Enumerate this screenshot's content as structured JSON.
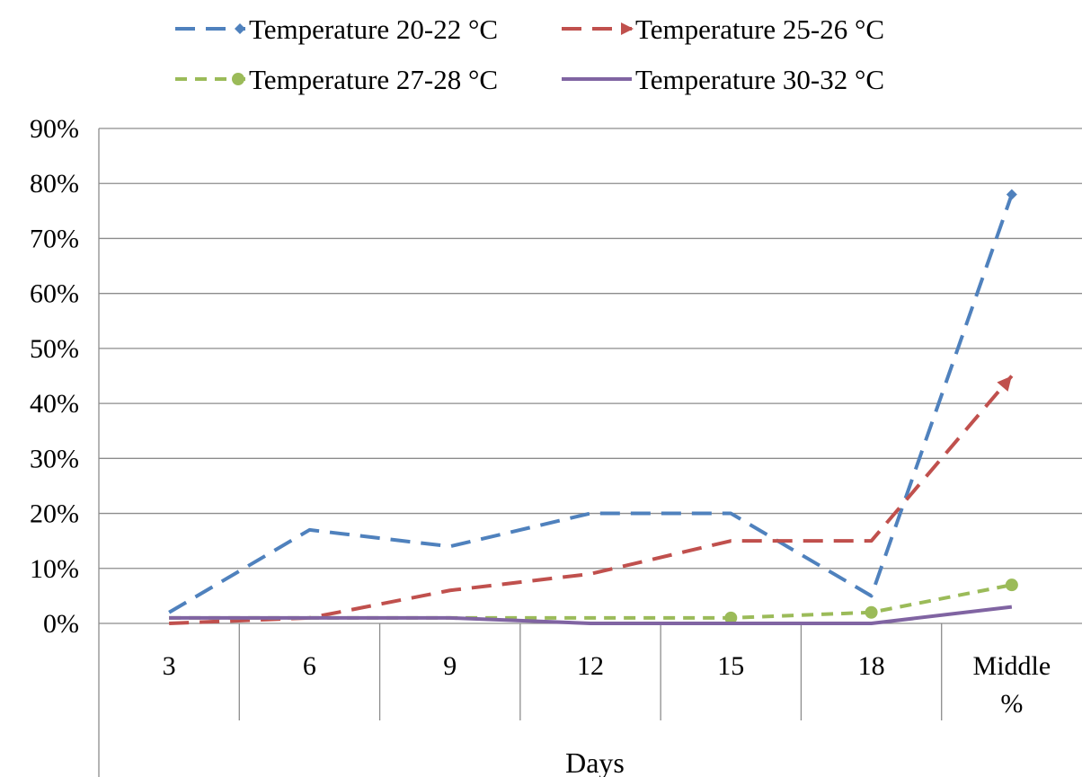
{
  "chart_data": {
    "type": "line",
    "title": "",
    "xlabel": "Days",
    "ylabel": "",
    "categories": [
      "3",
      "6",
      "9",
      "12",
      "15",
      "18",
      "Middle %"
    ],
    "category_lines": [
      [
        "3"
      ],
      [
        "6"
      ],
      [
        "9"
      ],
      [
        "12"
      ],
      [
        "15"
      ],
      [
        "18"
      ],
      [
        "Middle",
        "%"
      ]
    ],
    "ylim": [
      0,
      90
    ],
    "yticks": [
      0,
      10,
      20,
      30,
      40,
      50,
      60,
      70,
      80,
      90
    ],
    "ytick_labels": [
      "0%",
      "10%",
      "20%",
      "30%",
      "40%",
      "50%",
      "60%",
      "70%",
      "80%",
      "90%"
    ],
    "grid": true,
    "legend_position": "top",
    "series": [
      {
        "name": "Temperature  20-22 °C",
        "color": "#4f81bd",
        "dash": "long-dash",
        "marker": "diamond",
        "values": [
          2,
          17,
          14,
          20,
          20,
          5,
          78
        ]
      },
      {
        "name": "Temperature  25-26 °C",
        "color": "#c0504d",
        "dash": "long-dash",
        "marker": "arrow",
        "values": [
          0,
          1,
          6,
          9,
          15,
          15,
          45
        ]
      },
      {
        "name": "Temperature  27-28 °C",
        "color": "#9bbb59",
        "dash": "short-dash",
        "marker": "circle",
        "values": [
          1,
          1,
          1,
          1,
          1,
          2,
          7
        ]
      },
      {
        "name": "Temperature  30-32 °C",
        "color": "#8064a2",
        "dash": "solid",
        "marker": "none",
        "values": [
          1,
          1,
          1,
          0,
          0,
          0,
          3
        ]
      }
    ]
  }
}
